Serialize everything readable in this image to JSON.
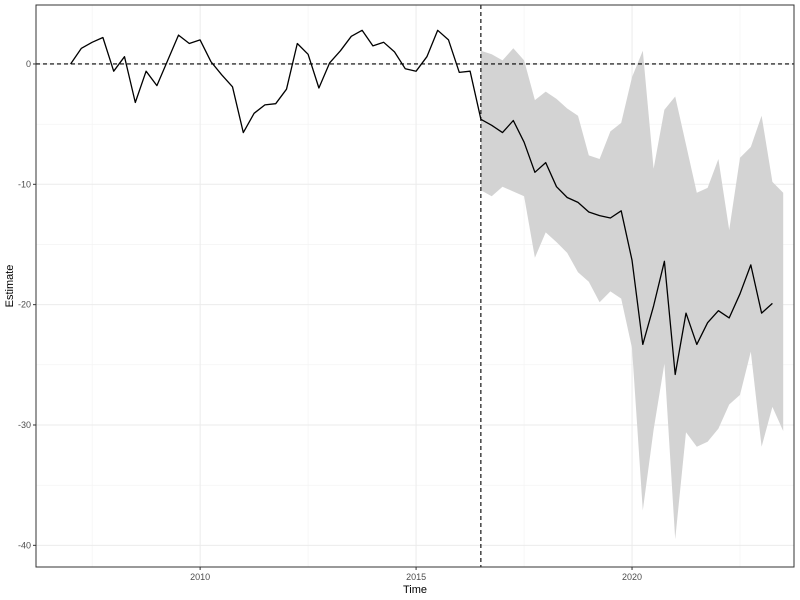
{
  "chart_data": {
    "type": "line",
    "xlabel": "Time",
    "ylabel": "Estimate",
    "xlim": [
      2006.2,
      2023.75
    ],
    "ylim": [
      -41.8,
      4.9
    ],
    "x_ticks": [
      2010,
      2015,
      2020
    ],
    "x_tick_labels": [
      "2010",
      "2015",
      "2020"
    ],
    "y_ticks": [
      0,
      -10,
      -20,
      -30,
      -40
    ],
    "y_tick_labels": [
      "0",
      "-10",
      "-20",
      "-30",
      "-40"
    ],
    "grid": true,
    "reference_lines": {
      "horizontal_y": 0,
      "vertical_x": 2016.5,
      "style": "dashed"
    },
    "series": [
      {
        "type": "line",
        "x": [
          2007.0,
          2007.25,
          2007.5,
          2007.75,
          2008.0,
          2008.25,
          2008.5,
          2008.75,
          2009.0,
          2009.25,
          2009.5,
          2009.75,
          2010.0,
          2010.25,
          2010.5,
          2010.75,
          2011.0,
          2011.25,
          2011.5,
          2011.75,
          2012.0,
          2012.25,
          2012.5,
          2012.75,
          2013.0,
          2013.25,
          2013.5,
          2013.75,
          2014.0,
          2014.25,
          2014.5,
          2014.75,
          2015.0,
          2015.25,
          2015.5,
          2015.75,
          2016.0,
          2016.25,
          2016.5,
          2016.75,
          2017.0,
          2017.25,
          2017.5,
          2017.75,
          2018.0,
          2018.25,
          2018.5,
          2018.75,
          2019.0,
          2019.25,
          2019.5,
          2019.75,
          2020.0,
          2020.25,
          2020.5,
          2020.75,
          2021.0,
          2021.25,
          2021.5,
          2021.75,
          2022.0,
          2022.25,
          2022.5,
          2022.75,
          2023.0,
          2023.25
        ],
        "y": [
          0.0,
          1.3,
          1.8,
          2.2,
          -0.6,
          0.6,
          -3.2,
          -0.6,
          -1.8,
          0.3,
          2.4,
          1.7,
          2.0,
          0.2,
          -0.9,
          -1.9,
          -5.7,
          -4.1,
          -3.4,
          -3.3,
          -2.1,
          1.7,
          0.8,
          -2.0,
          0.1,
          1.1,
          2.3,
          2.8,
          1.5,
          1.8,
          1.0,
          -0.4,
          -0.6,
          0.6,
          2.8,
          2.0,
          -0.7,
          -0.6,
          -4.6,
          -5.1,
          -5.7,
          -4.7,
          -6.5,
          -9.0,
          -8.2,
          -10.2,
          -11.1,
          -11.5,
          -12.3,
          -12.6,
          -12.8,
          -12.2,
          -16.3,
          -23.3,
          -20.1,
          -16.4,
          -25.8,
          -20.7,
          -23.3,
          -21.5,
          -20.5,
          -21.1,
          -19.1,
          -16.7,
          -20.7,
          -19.9
        ]
      },
      {
        "type": "band",
        "x": [
          2016.5,
          2016.75,
          2017.0,
          2017.25,
          2017.5,
          2017.75,
          2018.0,
          2018.25,
          2018.5,
          2018.75,
          2019.0,
          2019.25,
          2019.5,
          2019.75,
          2020.0,
          2020.25,
          2020.5,
          2020.75,
          2021.0,
          2021.25,
          2021.5,
          2021.75,
          2022.0,
          2022.25,
          2022.5,
          2022.75,
          2023.0,
          2023.25,
          2023.5
        ],
        "lower": [
          -10.5,
          -11.0,
          -10.2,
          -10.6,
          -11.0,
          -16.1,
          -14.0,
          -14.8,
          -15.7,
          -17.3,
          -18.1,
          -19.8,
          -18.9,
          -19.5,
          -23.6,
          -37.1,
          -30.4,
          -24.9,
          -39.5,
          -30.6,
          -31.8,
          -31.4,
          -30.3,
          -28.3,
          -27.5,
          -23.9,
          -31.8,
          -28.5,
          -30.5
        ],
        "upper": [
          1.1,
          0.8,
          0.3,
          1.3,
          0.3,
          -3.0,
          -2.3,
          -2.9,
          -3.7,
          -4.3,
          -7.6,
          -7.9,
          -5.6,
          -4.9,
          -1.1,
          1.1,
          -8.7,
          -3.8,
          -2.7,
          -6.7,
          -10.7,
          -10.3,
          -7.9,
          -13.8,
          -7.8,
          -6.9,
          -4.3,
          -9.8,
          -10.7
        ]
      }
    ]
  }
}
